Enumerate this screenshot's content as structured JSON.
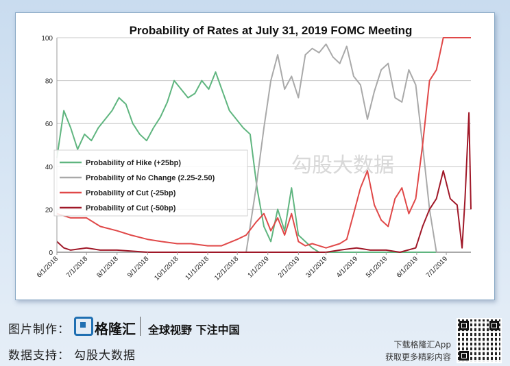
{
  "chart_data": {
    "type": "line",
    "title": "Probability of Rates at July 31, 2019 FOMC Meeting",
    "xlabel": "",
    "ylabel": "",
    "ylim": [
      0,
      100
    ],
    "yticks": [
      0,
      20,
      40,
      60,
      80,
      100
    ],
    "x_tick_labels": [
      "6/1/2018",
      "7/1/2018",
      "8/1/2018",
      "9/1/2018",
      "10/1/2018",
      "11/1/2018",
      "12/1/2018",
      "1/1/2019",
      "2/1/2019",
      "3/1/2019",
      "4/1/2019",
      "5/1/2019",
      "6/1/2019",
      "7/1/2019"
    ],
    "grid": "horizontal",
    "legend_position": "center-left",
    "x_range": [
      "2018-06-01",
      "2019-07-26"
    ],
    "series": [
      {
        "name": "Probability of Hike (+25bp)",
        "color": "#5fb57f",
        "points": [
          [
            "2018-06-01",
            44
          ],
          [
            "2018-06-08",
            66
          ],
          [
            "2018-06-15",
            58
          ],
          [
            "2018-06-22",
            48
          ],
          [
            "2018-06-29",
            55
          ],
          [
            "2018-07-06",
            52
          ],
          [
            "2018-07-13",
            58
          ],
          [
            "2018-07-20",
            62
          ],
          [
            "2018-07-27",
            66
          ],
          [
            "2018-08-03",
            72
          ],
          [
            "2018-08-10",
            69
          ],
          [
            "2018-08-17",
            60
          ],
          [
            "2018-08-24",
            55
          ],
          [
            "2018-08-31",
            52
          ],
          [
            "2018-09-07",
            58
          ],
          [
            "2018-09-14",
            63
          ],
          [
            "2018-09-21",
            70
          ],
          [
            "2018-09-28",
            80
          ],
          [
            "2018-10-05",
            76
          ],
          [
            "2018-10-12",
            72
          ],
          [
            "2018-10-19",
            74
          ],
          [
            "2018-10-26",
            80
          ],
          [
            "2018-11-02",
            76
          ],
          [
            "2018-11-09",
            84
          ],
          [
            "2018-11-16",
            75
          ],
          [
            "2018-11-23",
            66
          ],
          [
            "2018-11-30",
            62
          ],
          [
            "2018-12-07",
            58
          ],
          [
            "2018-12-14",
            55
          ],
          [
            "2018-12-21",
            30
          ],
          [
            "2018-12-28",
            12
          ],
          [
            "2019-01-04",
            5
          ],
          [
            "2019-01-11",
            20
          ],
          [
            "2019-01-18",
            10
          ],
          [
            "2019-01-25",
            30
          ],
          [
            "2019-02-01",
            8
          ],
          [
            "2019-02-08",
            5
          ],
          [
            "2019-02-15",
            2
          ],
          [
            "2019-02-22",
            0
          ],
          [
            "2019-03-01",
            0
          ],
          [
            "2019-07-26",
            0
          ]
        ]
      },
      {
        "name": "Probability of No Change (2.25-2.50)",
        "color": "#a9a9a9",
        "points": [
          [
            "2018-06-01",
            0
          ],
          [
            "2018-12-10",
            0
          ],
          [
            "2018-12-20",
            30
          ],
          [
            "2018-12-28",
            58
          ],
          [
            "2019-01-04",
            80
          ],
          [
            "2019-01-11",
            92
          ],
          [
            "2019-01-18",
            76
          ],
          [
            "2019-01-25",
            82
          ],
          [
            "2019-02-01",
            72
          ],
          [
            "2019-02-08",
            92
          ],
          [
            "2019-02-15",
            95
          ],
          [
            "2019-02-22",
            93
          ],
          [
            "2019-03-01",
            97
          ],
          [
            "2019-03-08",
            91
          ],
          [
            "2019-03-15",
            88
          ],
          [
            "2019-03-22",
            96
          ],
          [
            "2019-03-29",
            82
          ],
          [
            "2019-04-05",
            78
          ],
          [
            "2019-04-12",
            62
          ],
          [
            "2019-04-19",
            75
          ],
          [
            "2019-04-26",
            85
          ],
          [
            "2019-05-03",
            88
          ],
          [
            "2019-05-10",
            72
          ],
          [
            "2019-05-17",
            70
          ],
          [
            "2019-05-24",
            85
          ],
          [
            "2019-05-31",
            78
          ],
          [
            "2019-06-07",
            50
          ],
          [
            "2019-06-14",
            20
          ],
          [
            "2019-06-21",
            0
          ],
          [
            "2019-07-26",
            0
          ]
        ]
      },
      {
        "name": "Probability of Cut (-25bp)",
        "color": "#e04848",
        "points": [
          [
            "2018-06-01",
            18
          ],
          [
            "2018-06-15",
            16
          ],
          [
            "2018-07-01",
            16
          ],
          [
            "2018-07-15",
            12
          ],
          [
            "2018-08-01",
            10
          ],
          [
            "2018-08-15",
            8
          ],
          [
            "2018-09-01",
            6
          ],
          [
            "2018-09-15",
            5
          ],
          [
            "2018-10-01",
            4
          ],
          [
            "2018-10-15",
            4
          ],
          [
            "2018-11-01",
            3
          ],
          [
            "2018-11-15",
            3
          ],
          [
            "2018-12-01",
            6
          ],
          [
            "2018-12-10",
            8
          ],
          [
            "2018-12-20",
            14
          ],
          [
            "2018-12-28",
            18
          ],
          [
            "2019-01-04",
            10
          ],
          [
            "2019-01-11",
            16
          ],
          [
            "2019-01-18",
            8
          ],
          [
            "2019-01-25",
            18
          ],
          [
            "2019-02-01",
            5
          ],
          [
            "2019-02-08",
            3
          ],
          [
            "2019-02-15",
            4
          ],
          [
            "2019-02-22",
            3
          ],
          [
            "2019-03-01",
            2
          ],
          [
            "2019-03-15",
            4
          ],
          [
            "2019-03-22",
            6
          ],
          [
            "2019-03-29",
            18
          ],
          [
            "2019-04-05",
            30
          ],
          [
            "2019-04-12",
            38
          ],
          [
            "2019-04-19",
            22
          ],
          [
            "2019-04-26",
            15
          ],
          [
            "2019-05-03",
            12
          ],
          [
            "2019-05-10",
            25
          ],
          [
            "2019-05-17",
            30
          ],
          [
            "2019-05-24",
            18
          ],
          [
            "2019-05-31",
            25
          ],
          [
            "2019-06-07",
            50
          ],
          [
            "2019-06-14",
            80
          ],
          [
            "2019-06-21",
            85
          ],
          [
            "2019-06-28",
            100
          ],
          [
            "2019-07-26",
            100
          ]
        ]
      },
      {
        "name": "Probability of Cut (-50bp)",
        "color": "#a01828",
        "points": [
          [
            "2018-06-01",
            5
          ],
          [
            "2018-06-08",
            2
          ],
          [
            "2018-06-15",
            1
          ],
          [
            "2018-07-01",
            2
          ],
          [
            "2018-07-15",
            1
          ],
          [
            "2018-08-01",
            1
          ],
          [
            "2018-09-01",
            0
          ],
          [
            "2019-03-01",
            0
          ],
          [
            "2019-03-15",
            1
          ],
          [
            "2019-04-01",
            2
          ],
          [
            "2019-04-15",
            1
          ],
          [
            "2019-05-01",
            1
          ],
          [
            "2019-05-15",
            0
          ],
          [
            "2019-05-31",
            2
          ],
          [
            "2019-06-07",
            12
          ],
          [
            "2019-06-14",
            20
          ],
          [
            "2019-06-21",
            25
          ],
          [
            "2019-06-28",
            38
          ],
          [
            "2019-07-05",
            25
          ],
          [
            "2019-07-12",
            22
          ],
          [
            "2019-07-17",
            2
          ],
          [
            "2019-07-20",
            25
          ],
          [
            "2019-07-24",
            65
          ],
          [
            "2019-07-26",
            20
          ]
        ]
      }
    ]
  },
  "watermark": {
    "text": "勾股大数据"
  },
  "footer": {
    "made_by_label": "图片制作：",
    "brand_name": "格隆汇",
    "slogan": "全球视野 下注中国",
    "data_support_label": "数据支持：",
    "data_source": "勾股大数据",
    "download_line": "下载格隆汇App",
    "download_line2": "获取更多精彩内容"
  }
}
